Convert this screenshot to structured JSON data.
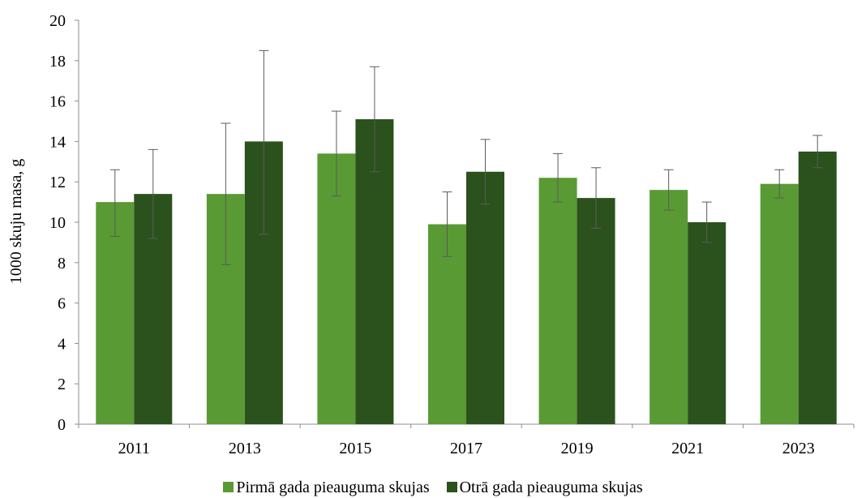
{
  "chart_data": {
    "type": "bar",
    "ylabel": "1000 skuju masa, g",
    "ylim": [
      0,
      20
    ],
    "yticks": [
      0,
      2,
      4,
      6,
      8,
      10,
      12,
      14,
      16,
      18,
      20
    ],
    "categories": [
      "2011",
      "2013",
      "2015",
      "2017",
      "2019",
      "2021",
      "2023"
    ],
    "grid": false,
    "legend_position": "bottom",
    "series": [
      {
        "name": "Pirmā gada pieauguma skujas",
        "color": "#5a9a34",
        "values": [
          11.0,
          11.4,
          13.4,
          9.9,
          12.2,
          11.6,
          11.9
        ],
        "error_low": [
          9.3,
          7.9,
          11.3,
          8.3,
          11.0,
          10.6,
          11.2
        ],
        "error_high": [
          12.6,
          14.9,
          15.5,
          11.5,
          13.4,
          12.6,
          12.6
        ]
      },
      {
        "name": "Otrā gada pieauguma skujas",
        "color": "#2b511d",
        "values": [
          11.4,
          14.0,
          15.1,
          12.5,
          11.2,
          10.0,
          13.5
        ],
        "error_low": [
          9.2,
          9.4,
          12.5,
          10.9,
          9.7,
          9.0,
          12.7
        ],
        "error_high": [
          13.6,
          18.5,
          17.7,
          14.1,
          12.7,
          11.0,
          14.3
        ]
      }
    ]
  }
}
